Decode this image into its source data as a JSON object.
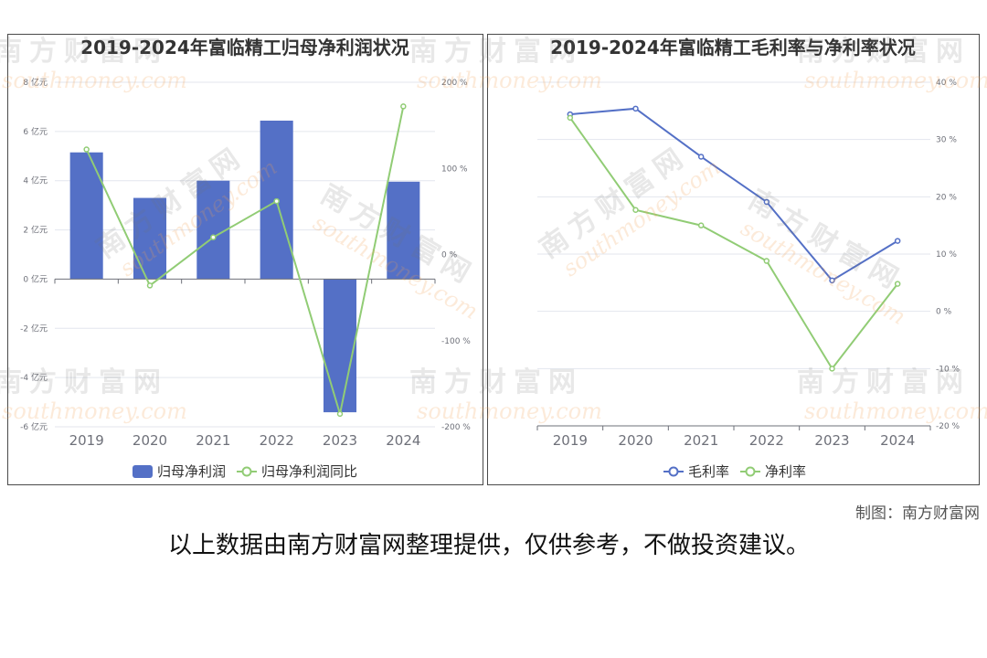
{
  "chart_data": [
    {
      "type": "bar",
      "title": "2019-2024年富临精工归母净利润状况",
      "categories": [
        "2019",
        "2020",
        "2021",
        "2022",
        "2023",
        "2024"
      ],
      "series": [
        {
          "name": "归母净利润",
          "type": "bar",
          "axis": "left",
          "values": [
            5.15,
            3.3,
            4.0,
            6.44,
            -5.41,
            3.96
          ],
          "color": "#5470c6"
        },
        {
          "name": "归母净利润同比",
          "type": "line",
          "axis": "right",
          "values": [
            122,
            -36,
            20,
            62,
            -185,
            172
          ],
          "color": "#91cc75"
        }
      ],
      "y_left": {
        "range": [
          -6,
          8
        ],
        "ticks": [
          8,
          6,
          4,
          2,
          0,
          -2,
          -4,
          -6
        ],
        "tick_labels": [
          "8 亿元",
          "6 亿元",
          "4 亿元",
          "2 亿元",
          "0 亿元",
          "-2 亿元",
          "-4 亿元",
          "-6 亿元"
        ]
      },
      "y_right": {
        "range": [
          -200,
          200
        ],
        "ticks": [
          200,
          100,
          0,
          -100,
          -200
        ],
        "tick_labels": [
          "200 %",
          "100 %",
          "0 %",
          "-100 %",
          "-200 %"
        ]
      },
      "grid": true,
      "legend": "bottom-center"
    },
    {
      "type": "line",
      "title": "2019-2024年富临精工毛利率与净利率状况",
      "categories": [
        "2019",
        "2020",
        "2021",
        "2022",
        "2023",
        "2024"
      ],
      "series": [
        {
          "name": "毛利率",
          "values": [
            34.4,
            35.4,
            27.0,
            19.1,
            5.4,
            12.3
          ],
          "color": "#5470c6"
        },
        {
          "name": "净利率",
          "values": [
            33.8,
            17.7,
            15.0,
            8.8,
            -10.0,
            4.8
          ],
          "color": "#91cc75"
        }
      ],
      "y_axis": {
        "position": "right",
        "range": [
          -20,
          40
        ],
        "ticks": [
          40,
          30,
          20,
          10,
          0,
          -10,
          -20
        ],
        "tick_labels": [
          "40 %",
          "30 %",
          "20 %",
          "10 %",
          "0 %",
          "-10 %",
          "-20 %"
        ]
      },
      "grid": true,
      "legend": "bottom-center"
    }
  ],
  "footer": {
    "credit": "制图：南方财富网",
    "disclaimer": "以上数据由南方财富网整理提供，仅供参考，不做投资建议。"
  },
  "watermark": {
    "cn": "南方财富网",
    "en": "southmoney.com"
  }
}
